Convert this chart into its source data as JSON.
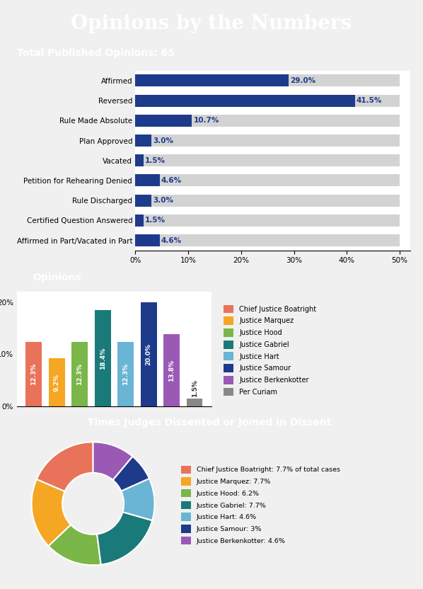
{
  "title": "Opinions by the Numbers",
  "title_bg": "#1e3a5f",
  "title_color": "#ffffff",
  "bar_section_title": "Total Published Opinions: 65",
  "bar_categories": [
    "Affirmed",
    "Reversed",
    "Rule Made Absolute",
    "Plan Approved",
    "Vacated",
    "Petition for Rehearing Denied",
    "Rule Discharged",
    "Certified Question Answered",
    "Affirmed in Part/Vacated in Part"
  ],
  "bar_values": [
    29.0,
    41.5,
    10.7,
    3.0,
    1.5,
    4.6,
    3.0,
    1.5,
    4.6
  ],
  "bar_color": "#1e3a8a",
  "bar_bg_color": "#d3d3d3",
  "bar_xlim": [
    0,
    50
  ],
  "bar_xticks": [
    0,
    10,
    20,
    30,
    40,
    50
  ],
  "bar_xtick_labels": [
    "0%",
    "10%",
    "20%",
    "30%",
    "40%",
    "50%"
  ],
  "opinions_title": "Opinions",
  "opinions_labels": [
    "Chief Justice\nBoatright",
    "Justice\nMarquez",
    "Justice\nHood",
    "Justice\nGabriel",
    "Justice\nHart",
    "Justice\nSamour",
    "Justice\nBerkenkotter",
    "Per\nCuriam"
  ],
  "opinions_values": [
    12.3,
    9.2,
    12.3,
    18.4,
    12.3,
    20.0,
    13.8,
    1.5
  ],
  "opinions_colors": [
    "#e8735a",
    "#f5a623",
    "#7ab648",
    "#1a7a7a",
    "#6ab4d4",
    "#1e3a8a",
    "#9b59b6",
    "#888888"
  ],
  "opinions_legend": [
    "Chief Justice Boatright",
    "Justice Marquez",
    "Justice Hood",
    "Justice Gabriel",
    "Justice Hart",
    "Justice Samour",
    "Justice Berkenkotter",
    "Per Curiam"
  ],
  "dissent_title": "Times Judges Dissented or Joined in Dissent",
  "dissent_labels": [
    "Chief Justice Boatright",
    "Justice Marquez",
    "Justice Hood",
    "Justice Gabriel",
    "Justice Hart",
    "Justice Samour",
    "Justice Berkenkotter"
  ],
  "dissent_values": [
    7.7,
    7.7,
    6.2,
    7.7,
    4.6,
    3.0,
    4.6
  ],
  "dissent_colors": [
    "#e8735a",
    "#f5a623",
    "#7ab648",
    "#1a7a7a",
    "#6ab4d4",
    "#1e3a8a",
    "#9b59b6"
  ],
  "dissent_legend_labels": [
    "Chief Justice Boatright: 7.7% of total cases",
    "Justice Marquez: 7.7%",
    "Justice Hood: 6.2%",
    "Justice Gabriel: 7.7%",
    "Justice Hart: 4.6%",
    "Justice Samour: 3%",
    "Justice Berkenkotter: 4.6%"
  ],
  "section_bg": "#ffffff",
  "section_header_bg": "#1e3a5f",
  "section_header_color": "#ffffff"
}
